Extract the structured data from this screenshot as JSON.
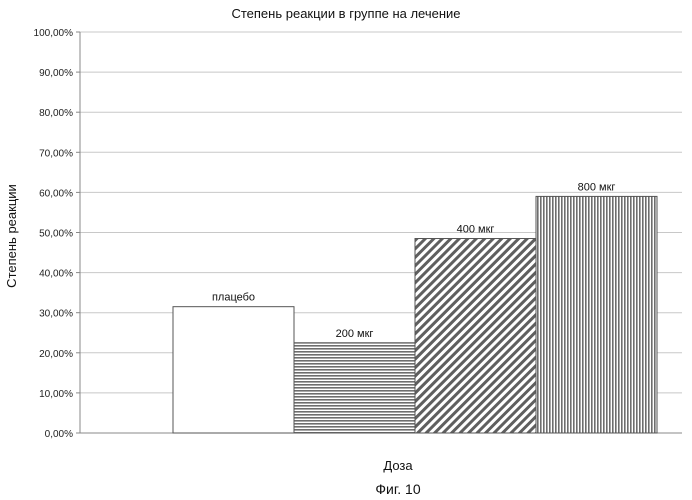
{
  "chart_data": {
    "type": "bar",
    "title": "Степень реакции в группе на лечение",
    "xlabel": "Доза",
    "ylabel": "Степень реакции",
    "caption": "Фиг. 10",
    "categories": [
      "плацебо",
      "200 мкг",
      "400 мкг",
      "800 мкг"
    ],
    "values": [
      31.5,
      22.5,
      48.5,
      59.0
    ],
    "ylim": [
      0,
      100
    ],
    "yticks": [
      "0,00%",
      "10,00%",
      "20,00%",
      "30,00%",
      "40,00%",
      "50,00%",
      "60,00%",
      "70,00%",
      "80,00%",
      "90,00%",
      "100,00%"
    ],
    "grid": true,
    "legend": "none",
    "fills": [
      "white",
      "horizontal-stripes",
      "diagonal-hatch",
      "vertical-stripes"
    ],
    "colors": {
      "bar_fill": "#8c8c8c",
      "bar_stroke": "#555555",
      "grid": "#c8c8c8",
      "axis": "#888888"
    }
  }
}
